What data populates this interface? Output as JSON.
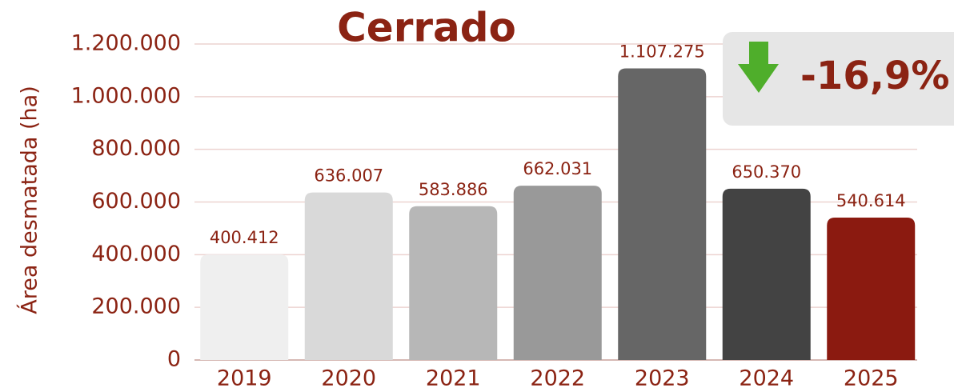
{
  "chart_data": {
    "type": "bar",
    "title": "Cerrado",
    "y_axis_label": "Área desmatada (ha)",
    "annotation": "-16,9%",
    "categories": [
      "2019",
      "2020",
      "2021",
      "2022",
      "2023",
      "2024",
      "2025"
    ],
    "values": [
      400412,
      636007,
      583886,
      662031,
      1107275,
      650370,
      540614
    ],
    "value_labels": [
      "400.412",
      "636.007",
      "583.886",
      "662.031",
      "1.107.275",
      "650.370",
      "540.614"
    ],
    "colors": [
      "#efefef",
      "#d9d9d9",
      "#b7b7b7",
      "#999999",
      "#666666",
      "#434343",
      "#8b1a10"
    ],
    "ylim": [
      0,
      1200000
    ],
    "yticks": [
      0,
      {
        "value": 200000,
        "label": "200.000"
      },
      {
        "value": 400000,
        "label": "400.000"
      },
      {
        "value": 600000,
        "label": "600.000"
      },
      {
        "value": 800000,
        "label": "800.000"
      },
      {
        "value": 1000000,
        "label": "1.000.000"
      },
      {
        "value": 1200000,
        "label": "1.200.000"
      }
    ],
    "grid": true
  }
}
